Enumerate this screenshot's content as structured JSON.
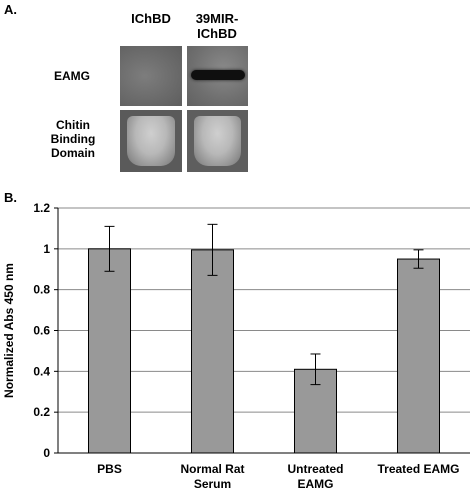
{
  "panel_a": {
    "label": "A.",
    "lanes": [
      "IChBD",
      "39MIR-\nIChBD"
    ],
    "rows": [
      "EAMG",
      "Chitin\nBinding\nDomain"
    ]
  },
  "panel_b": {
    "label": "B."
  },
  "chart_data": {
    "type": "bar",
    "ylabel": "Normalized Abs 450 nm",
    "xlabel": "",
    "ylim": [
      0,
      1.2
    ],
    "yticks": [
      0,
      0.2,
      0.4,
      0.6,
      0.8,
      1,
      1.2
    ],
    "ytick_labels": [
      "0",
      "0.2",
      "0.4",
      "0.6",
      "0.8",
      "1",
      "1.2"
    ],
    "grid": true,
    "categories": [
      "PBS",
      "Normal Rat\nSerum",
      "Untreated\nEAMG",
      "Treated EAMG"
    ],
    "values": [
      1.0,
      0.995,
      0.41,
      0.95
    ],
    "errors": [
      0.11,
      0.125,
      0.075,
      0.045
    ],
    "bar_color": "#999999"
  }
}
